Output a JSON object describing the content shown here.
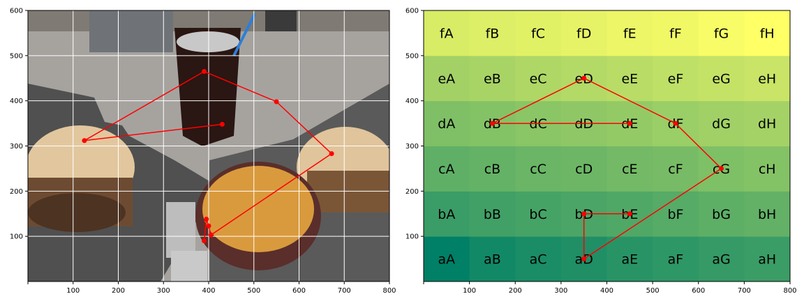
{
  "chart_data": [
    {
      "type": "scatter",
      "panel": "photo",
      "background_image": "photo of two burgers, a basket of french fries, a glass of cola with ice, salt and pepper shakers on checkered paper",
      "xlim": [
        0,
        800
      ],
      "ylim": [
        0,
        600
      ],
      "xticks": [
        100,
        200,
        300,
        400,
        500,
        600,
        700,
        800
      ],
      "yticks": [
        100,
        200,
        300,
        400,
        500,
        600
      ],
      "grid": true,
      "grid_color": "#ffffff",
      "series": [
        {
          "color": "#ff0000",
          "points": [
            [
              430,
              348
            ],
            [
              125,
              312
            ],
            [
              390,
              465
            ],
            [
              550,
              398
            ],
            [
              672,
              283
            ],
            [
              405,
              103
            ],
            [
              400,
              123
            ],
            [
              395,
              138
            ],
            [
              390,
              90
            ]
          ]
        }
      ]
    },
    {
      "type": "heatmap",
      "panel": "grid",
      "xlim": [
        0,
        800
      ],
      "ylim": [
        0,
        600
      ],
      "xticks": [
        100,
        200,
        300,
        400,
        500,
        600,
        700,
        800
      ],
      "yticks": [
        100,
        200,
        300,
        400,
        500,
        600
      ],
      "colormap": "summer",
      "rows": [
        "a",
        "b",
        "c",
        "d",
        "e",
        "f"
      ],
      "cols": [
        "A",
        "B",
        "C",
        "D",
        "E",
        "F",
        "G",
        "H"
      ],
      "colors": {
        "a": [
          "#008066",
          "#128966",
          "#1a8d66",
          "#208f66",
          "#289466",
          "#2e9766",
          "#359a66",
          "#3b9d66"
        ],
        "b": [
          "#3a9c66",
          "#41a066",
          "#46a366",
          "#4ba566",
          "#50a866",
          "#56ab66",
          "#5daf66",
          "#63b166"
        ],
        "c": [
          "#5fb066",
          "#64b266",
          "#6ab566",
          "#6db666",
          "#73b966",
          "#78bb66",
          "#7ec066",
          "#84c266"
        ],
        "d": [
          "#7fbf66",
          "#84c266",
          "#8ac566",
          "#8fc766",
          "#94ca66",
          "#9ace66",
          "#a0d066",
          "#a5d266"
        ],
        "e": [
          "#a3d166",
          "#a8d466",
          "#aed766",
          "#b3d966",
          "#b8dc66",
          "#bee066",
          "#c4e266",
          "#c9e466"
        ],
        "f": [
          "#d8ec66",
          "#dcef66",
          "#e1f166",
          "#e7f366",
          "#ecf666",
          "#f1f866",
          "#f8fc66",
          "#ffff66"
        ]
      },
      "series": [
        {
          "color": "#ff0000",
          "points": [
            [
              450,
              350
            ],
            [
              150,
              350
            ],
            [
              350,
              450
            ],
            [
              550,
              350
            ],
            [
              650,
              250
            ],
            [
              350,
              50
            ],
            [
              350,
              150
            ],
            [
              450,
              150
            ]
          ]
        }
      ]
    }
  ]
}
